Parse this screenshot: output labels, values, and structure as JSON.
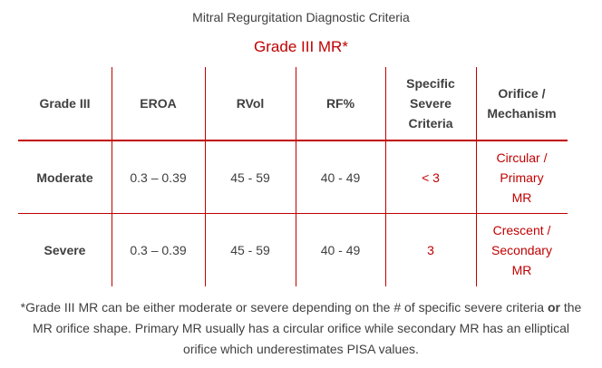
{
  "title": "Mitral Regurgitation Diagnostic Criteria",
  "subtitle": "Grade III MR*",
  "table": {
    "headers": [
      "Grade III",
      "EROA",
      "RVol",
      "RF%",
      "Specific Severe Criteria",
      "Orifice / Mechanism"
    ],
    "rows": [
      {
        "label": "Moderate",
        "eroa": "0.3 – 0.39",
        "rvol": "45 - 59",
        "rf": "40 - 49",
        "criteria": "< 3",
        "orifice": "Circular / Primary MR"
      },
      {
        "label": "Severe",
        "eroa": "0.3 – 0.39",
        "rvol": "45 - 59",
        "rf": "40 - 49",
        "criteria": "3",
        "orifice": "Crescent / Secondary MR"
      }
    ]
  },
  "footnote": {
    "part1": "*Grade III MR can be either moderate or severe depending on the # of specific severe criteria ",
    "bold": "or",
    "part2": " the MR orifice shape.  Primary MR usually has a circular orifice while secondary MR has an elliptical orifice which underestimates PISA values."
  },
  "colors": {
    "accent": "#c00000",
    "text": "#404040"
  }
}
